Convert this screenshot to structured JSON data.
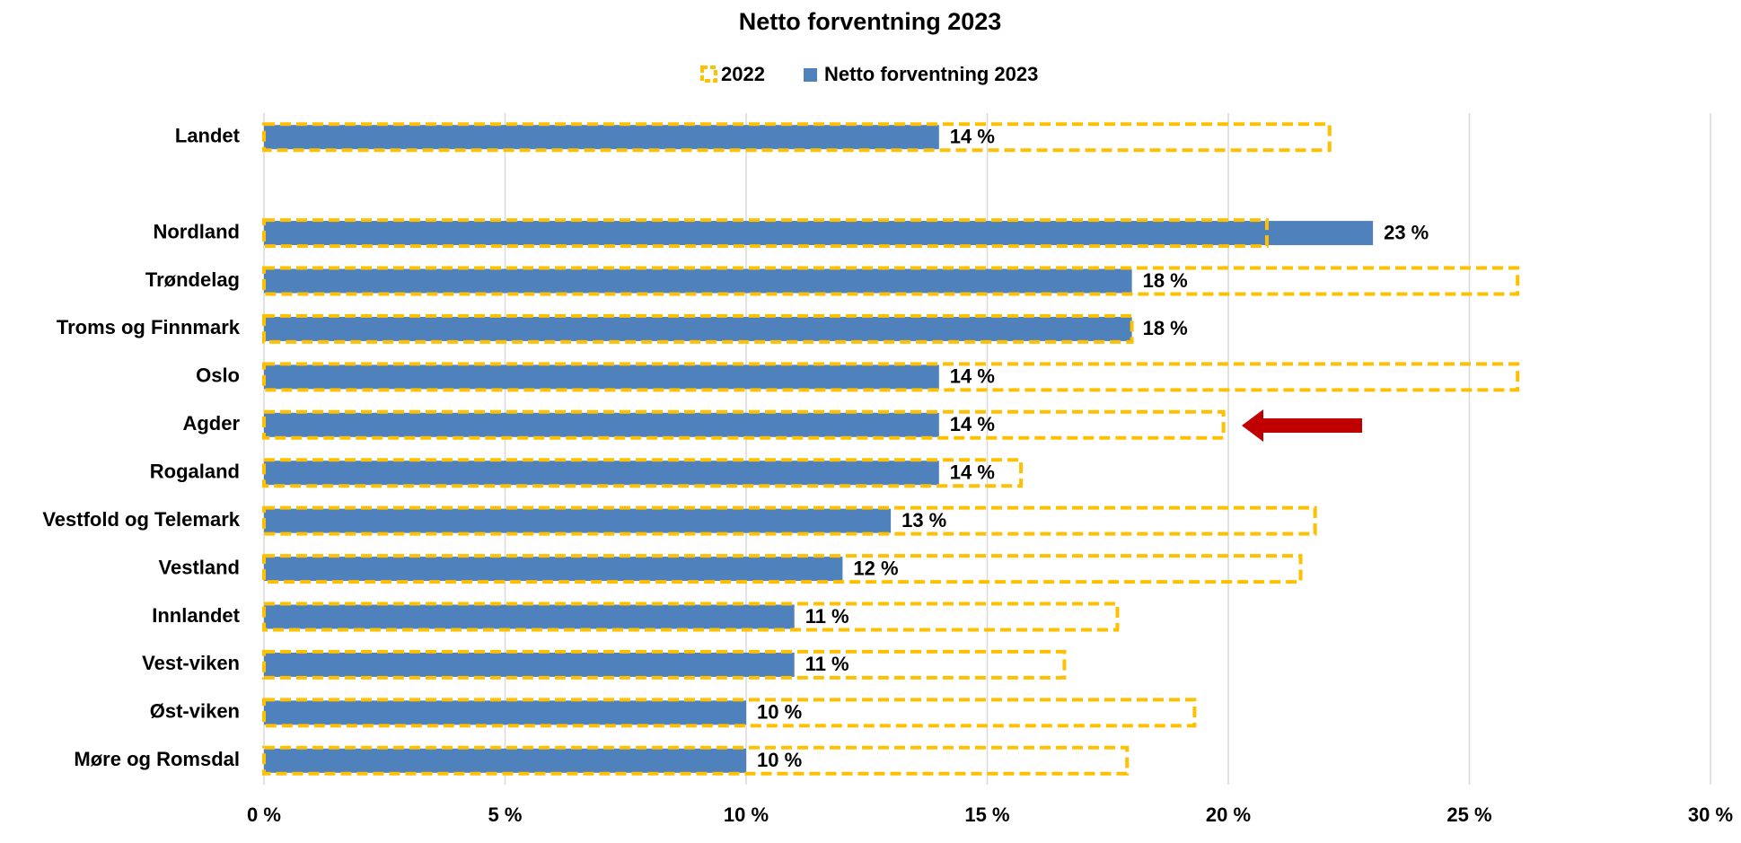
{
  "chart_data": {
    "type": "bar",
    "orientation": "horizontal",
    "title": "Netto forventning 2023",
    "categories": [
      "Landet",
      null,
      "Nordland",
      "Trøndelag",
      "Troms og Finnmark",
      "Oslo",
      "Agder",
      "Rogaland",
      "Vestfold og Telemark",
      "Vestland",
      "Innlandet",
      "Vest-viken",
      "Øst-viken",
      "Møre og Romsdal"
    ],
    "series": [
      {
        "name": "2022",
        "color": "#ffc000",
        "style": "dashed-outline",
        "values": [
          22.1,
          null,
          20.8,
          26.0,
          18.0,
          26.0,
          19.9,
          15.7,
          21.8,
          21.5,
          17.7,
          16.6,
          19.3,
          17.9
        ]
      },
      {
        "name": "Netto forventning 2023",
        "color": "#4f81bd",
        "values": [
          14,
          null,
          23,
          18,
          18,
          14,
          14,
          14,
          13,
          12,
          11,
          11,
          10,
          10
        ],
        "value_labels": [
          "14 %",
          null,
          "23 %",
          "18 %",
          "18 %",
          "14 %",
          "14 %",
          "14 %",
          "13 %",
          "12 %",
          "11 %",
          "11 %",
          "10 %",
          "10 %"
        ]
      }
    ],
    "xlim": [
      0,
      30
    ],
    "xticks": [
      {
        "value": 0,
        "label": "0 %"
      },
      {
        "value": 5,
        "label": "5 %"
      },
      {
        "value": 10,
        "label": "10 %"
      },
      {
        "value": 15,
        "label": "15 %"
      },
      {
        "value": 20,
        "label": "20 %"
      },
      {
        "value": 25,
        "label": "25 %"
      },
      {
        "value": 30,
        "label": "30 %"
      }
    ],
    "grid": true,
    "legend": "top"
  }
}
